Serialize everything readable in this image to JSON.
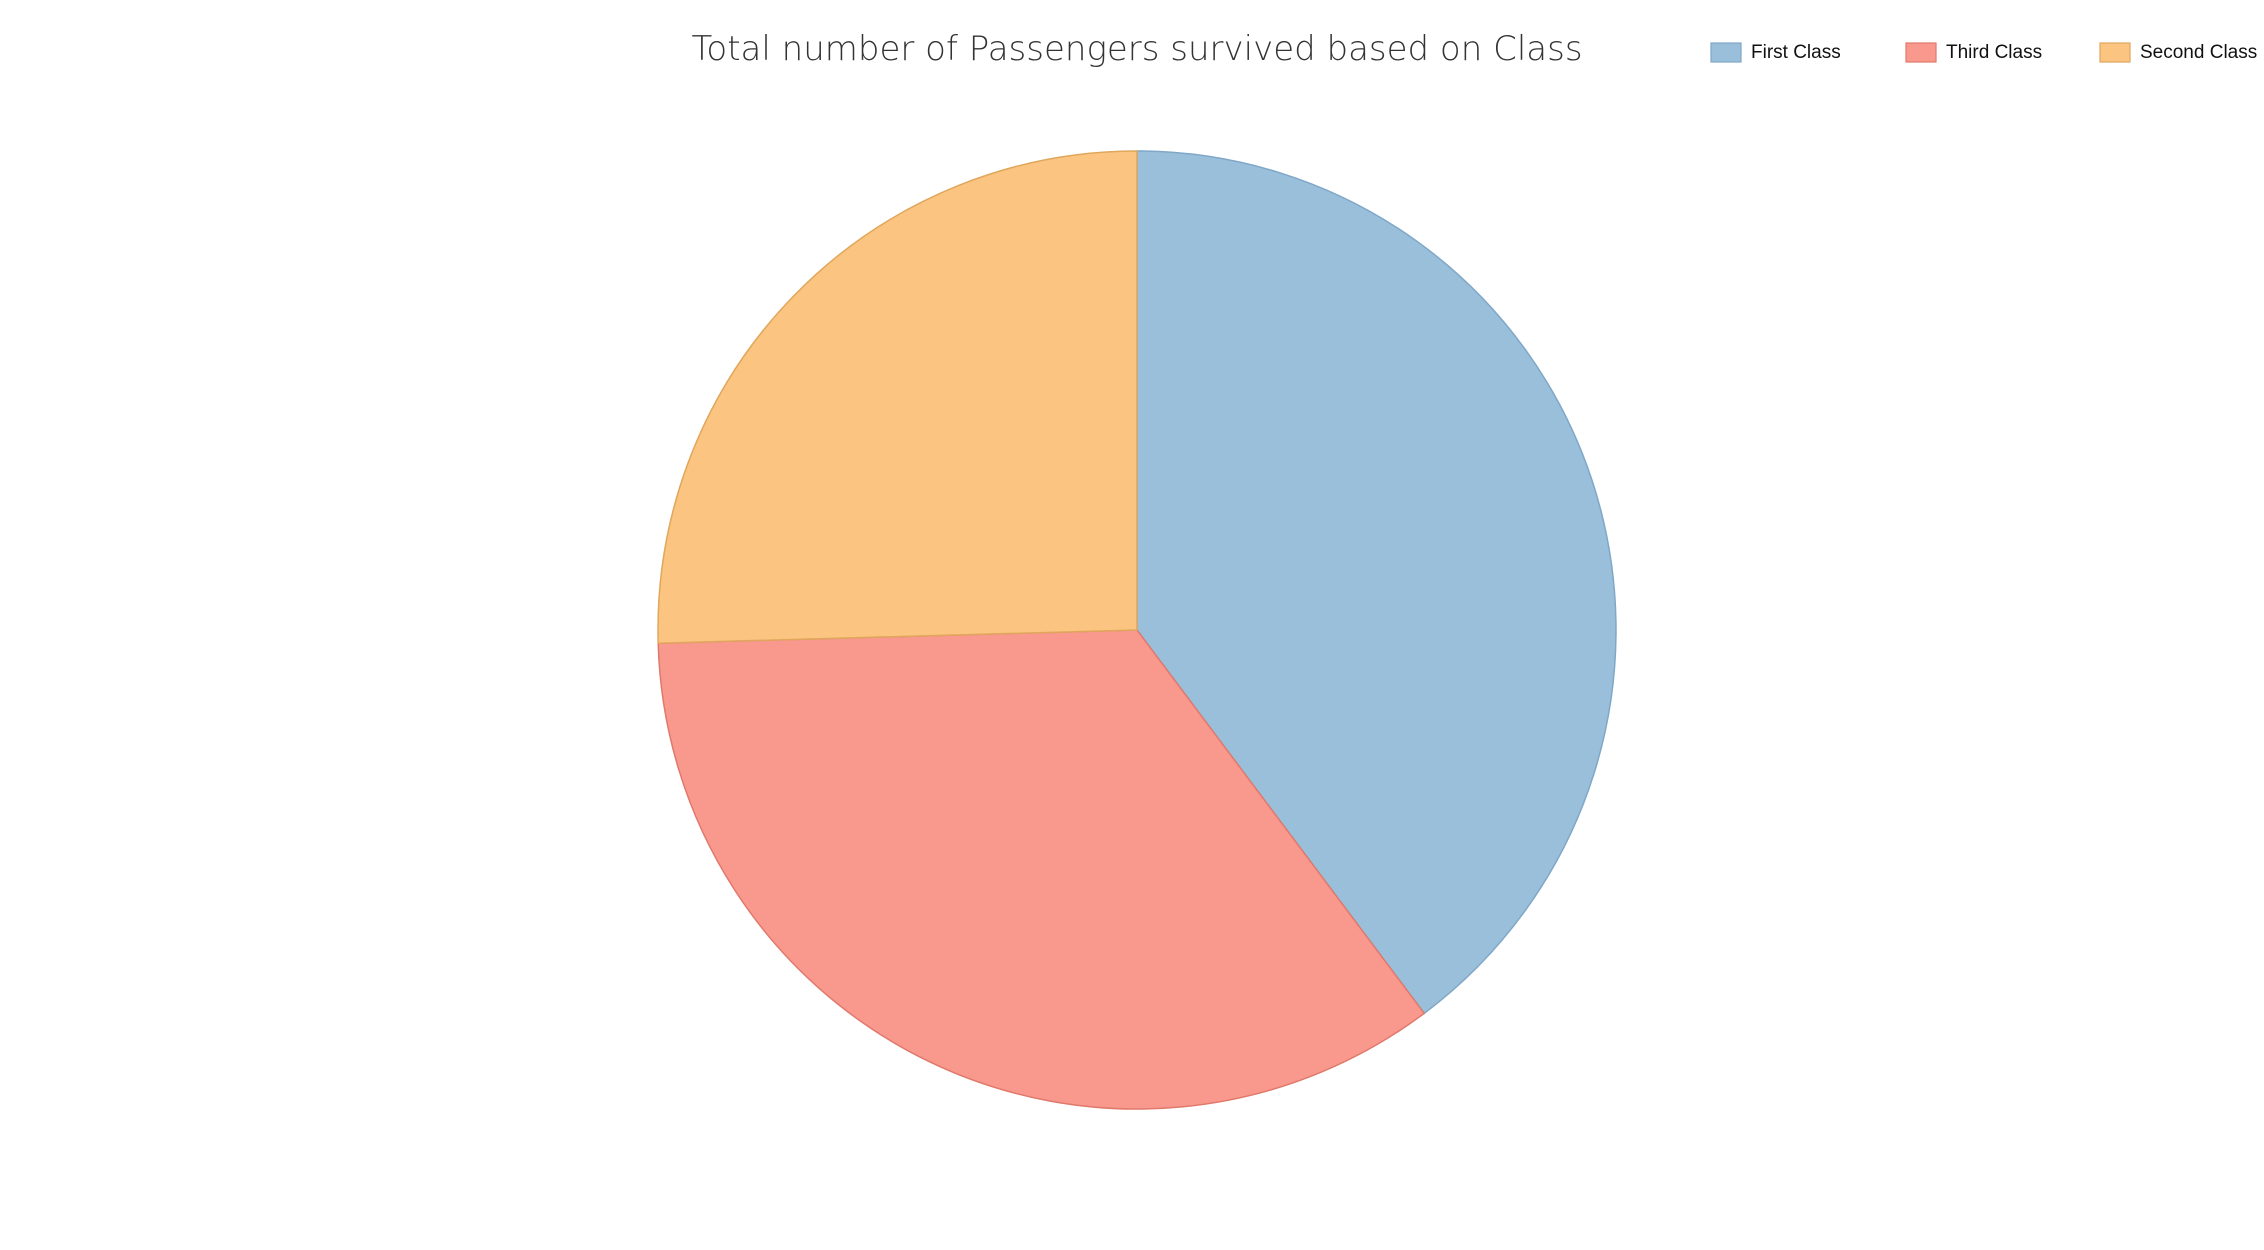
{
  "chart_data": {
    "type": "pie",
    "title": "Total number of Passengers survived based on Class",
    "legend_position": "top-right",
    "start_angle_deg": 0,
    "direction": "clockwise",
    "slices": [
      {
        "label": "First Class",
        "value": 136,
        "color": "#9ABFDA",
        "stroke": "#7FA7C8"
      },
      {
        "label": "Third Class",
        "value": 119,
        "color": "#F9998D",
        "stroke": "#E0796B"
      },
      {
        "label": "Second Class",
        "value": 87,
        "color": "#FBC481",
        "stroke": "#E0A75C"
      }
    ]
  }
}
